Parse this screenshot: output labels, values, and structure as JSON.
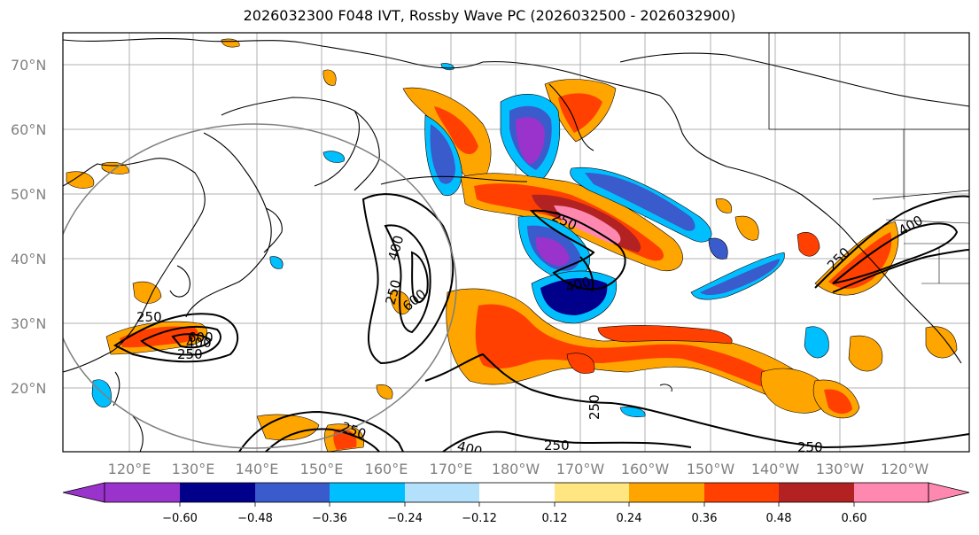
{
  "title": "2026032300 F048 IVT, Rossby Wave PC (2026032500 - 2026032900)",
  "map": {
    "lat_labels": [
      "70°N",
      "60°N",
      "50°N",
      "40°N",
      "30°N",
      "20°N"
    ],
    "lon_labels": [
      "120°E",
      "130°E",
      "140°E",
      "150°E",
      "160°E",
      "170°E",
      "180°W",
      "170°W",
      "160°W",
      "150°W",
      "140°W",
      "130°W",
      "120°W"
    ],
    "contour_labels": [
      "250",
      "250",
      "400",
      "600",
      "400",
      "600",
      "250",
      "250",
      "400",
      "400",
      "250",
      "250",
      "250",
      "400",
      "250",
      "250"
    ],
    "colors": {
      "ocean": "#ffffff",
      "grid": "#b0b0b0",
      "coast": "#000000",
      "ellipse": "#808080"
    }
  },
  "colorbar": {
    "ticks": [
      "−0.60",
      "−0.48",
      "−0.36",
      "−0.24",
      "−0.12",
      "0.12",
      "0.24",
      "0.36",
      "0.48",
      "0.60"
    ],
    "bins": [
      "#9933cc",
      "#00008b",
      "#3a5bcc",
      "#00bfff",
      "#b3e1fb",
      "#ffffff",
      "#ffe680",
      "#ffa500",
      "#ff4000",
      "#b22222",
      "#ff88b0"
    ]
  }
}
